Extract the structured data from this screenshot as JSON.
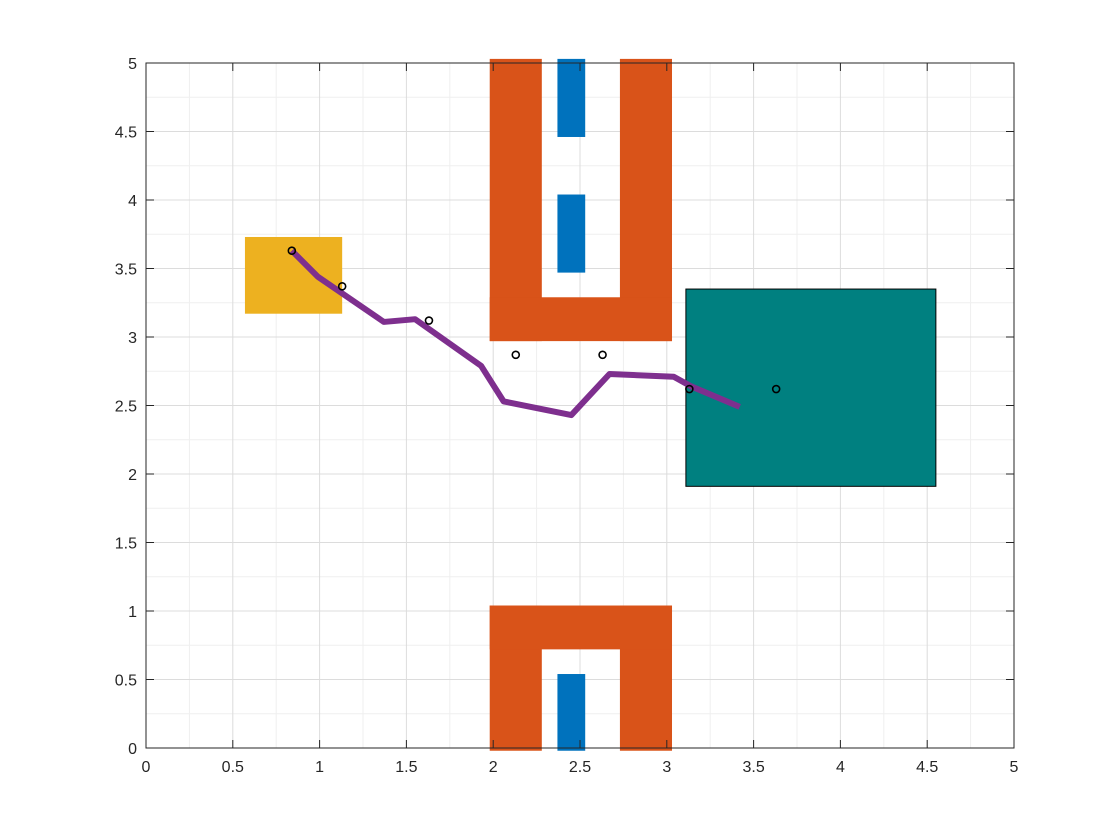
{
  "chart_data": {
    "type": "scatter",
    "title": "",
    "xlabel": "",
    "ylabel": "",
    "xlim": [
      0,
      5
    ],
    "ylim": [
      0,
      5
    ],
    "grid": true,
    "minor_grid": true,
    "x_ticks": [
      0,
      0.5,
      1,
      1.5,
      2,
      2.5,
      3,
      3.5,
      4,
      4.5,
      5
    ],
    "y_ticks": [
      0,
      0.5,
      1,
      1.5,
      2,
      2.5,
      3,
      3.5,
      4,
      4.5,
      5
    ],
    "x_tick_labels": [
      "0",
      "0.5",
      "1",
      "1.5",
      "2",
      "2.5",
      "3",
      "3.5",
      "4",
      "4.5",
      "5"
    ],
    "y_tick_labels": [
      "0",
      "0.5",
      "1",
      "1.5",
      "2",
      "2.5",
      "3",
      "3.5",
      "4",
      "4.5",
      "5"
    ],
    "regions": [
      {
        "kind": "start-region",
        "color": "#EDB120",
        "x": [
          0.57,
          1.13
        ],
        "y": [
          3.17,
          3.73
        ],
        "edge": false
      },
      {
        "kind": "goal-region",
        "color": "#008080",
        "x": [
          3.11,
          4.55
        ],
        "y": [
          1.91,
          3.35
        ],
        "edge": true
      },
      {
        "kind": "obstacle",
        "color": "#D95319",
        "x": [
          1.98,
          2.28
        ],
        "y": [
          2.97,
          5.03
        ],
        "edge": false
      },
      {
        "kind": "obstacle",
        "color": "#D95319",
        "x": [
          2.73,
          3.03
        ],
        "y": [
          2.97,
          5.03
        ],
        "edge": false
      },
      {
        "kind": "obstacle",
        "color": "#D95319",
        "x": [
          1.98,
          3.03
        ],
        "y": [
          2.97,
          3.29
        ],
        "edge": false
      },
      {
        "kind": "obstacle",
        "color": "#D95319",
        "x": [
          1.98,
          2.28
        ],
        "y": [
          -0.02,
          1.04
        ],
        "edge": false
      },
      {
        "kind": "obstacle",
        "color": "#D95319",
        "x": [
          2.73,
          3.03
        ],
        "y": [
          -0.02,
          1.04
        ],
        "edge": false
      },
      {
        "kind": "obstacle",
        "color": "#D95319",
        "x": [
          1.98,
          3.03
        ],
        "y": [
          0.72,
          1.04
        ],
        "edge": false
      },
      {
        "kind": "inner-obstacle",
        "color": "#0072BD",
        "x": [
          2.37,
          2.53
        ],
        "y": [
          4.46,
          5.03
        ],
        "edge": false
      },
      {
        "kind": "inner-obstacle",
        "color": "#0072BD",
        "x": [
          2.37,
          2.53
        ],
        "y": [
          3.47,
          4.04
        ],
        "edge": false
      },
      {
        "kind": "inner-obstacle",
        "color": "#0072BD",
        "x": [
          2.37,
          2.53
        ],
        "y": [
          -0.02,
          0.54
        ],
        "edge": false
      }
    ],
    "series": [
      {
        "kind": "trajectory",
        "color": "#7E2F8E",
        "x": [
          0.84,
          0.99,
          1.37,
          1.55,
          1.93,
          2.06,
          2.45,
          2.67,
          3.04,
          3.14,
          3.42
        ],
        "y": [
          3.63,
          3.44,
          3.11,
          3.13,
          2.79,
          2.53,
          2.43,
          2.73,
          2.71,
          2.64,
          2.49
        ]
      },
      {
        "kind": "waypoints",
        "color": "#000000",
        "x": [
          0.84,
          1.13,
          1.63,
          2.13,
          2.63,
          3.13,
          3.63
        ],
        "y": [
          3.63,
          3.37,
          3.12,
          2.87,
          2.87,
          2.62,
          2.62
        ]
      }
    ]
  }
}
